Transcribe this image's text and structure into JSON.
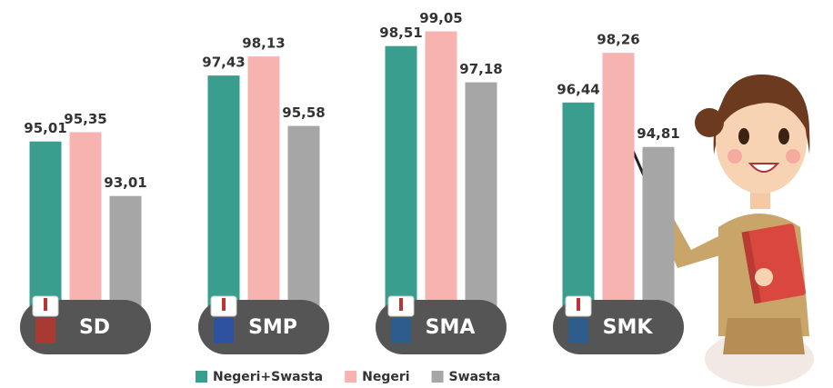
{
  "chart_data": {
    "type": "bar",
    "categories": [
      "SD",
      "SMP",
      "SMA",
      "SMK"
    ],
    "series": [
      {
        "name": "Negeri+Swasta",
        "color": "#3a9e8f",
        "values": [
          95.01,
          97.43,
          98.51,
          96.44
        ],
        "value_labels": [
          "95,01",
          "97,43",
          "98,51",
          "96,44"
        ]
      },
      {
        "name": "Negeri",
        "color": "#f7b3b0",
        "values": [
          95.35,
          98.13,
          99.05,
          98.26
        ],
        "value_labels": [
          "95,35",
          "98,13",
          "99,05",
          "98,26"
        ]
      },
      {
        "name": "Swasta",
        "color": "#a6a6a6",
        "values": [
          93.01,
          95.58,
          97.18,
          94.81
        ],
        "value_labels": [
          "93,01",
          "95,58",
          "97,18",
          "94,81"
        ]
      }
    ],
    "ylim": [
      89.2,
      100
    ],
    "legend": "bottom"
  }
}
